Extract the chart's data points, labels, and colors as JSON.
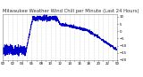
{
  "title": "Milwaukee Weather Wind Chill per Minute (Last 24 Hours)",
  "background_color": "#ffffff",
  "line_color": "#0000cc",
  "line_width": 0.6,
  "ylim": [
    -20,
    12
  ],
  "xlim": [
    0,
    1440
  ],
  "yticks": [
    10,
    5,
    0,
    -5,
    -10,
    -15,
    -20
  ],
  "grid_color": "#bbbbbb",
  "title_fontsize": 3.8,
  "tick_fontsize": 2.8
}
